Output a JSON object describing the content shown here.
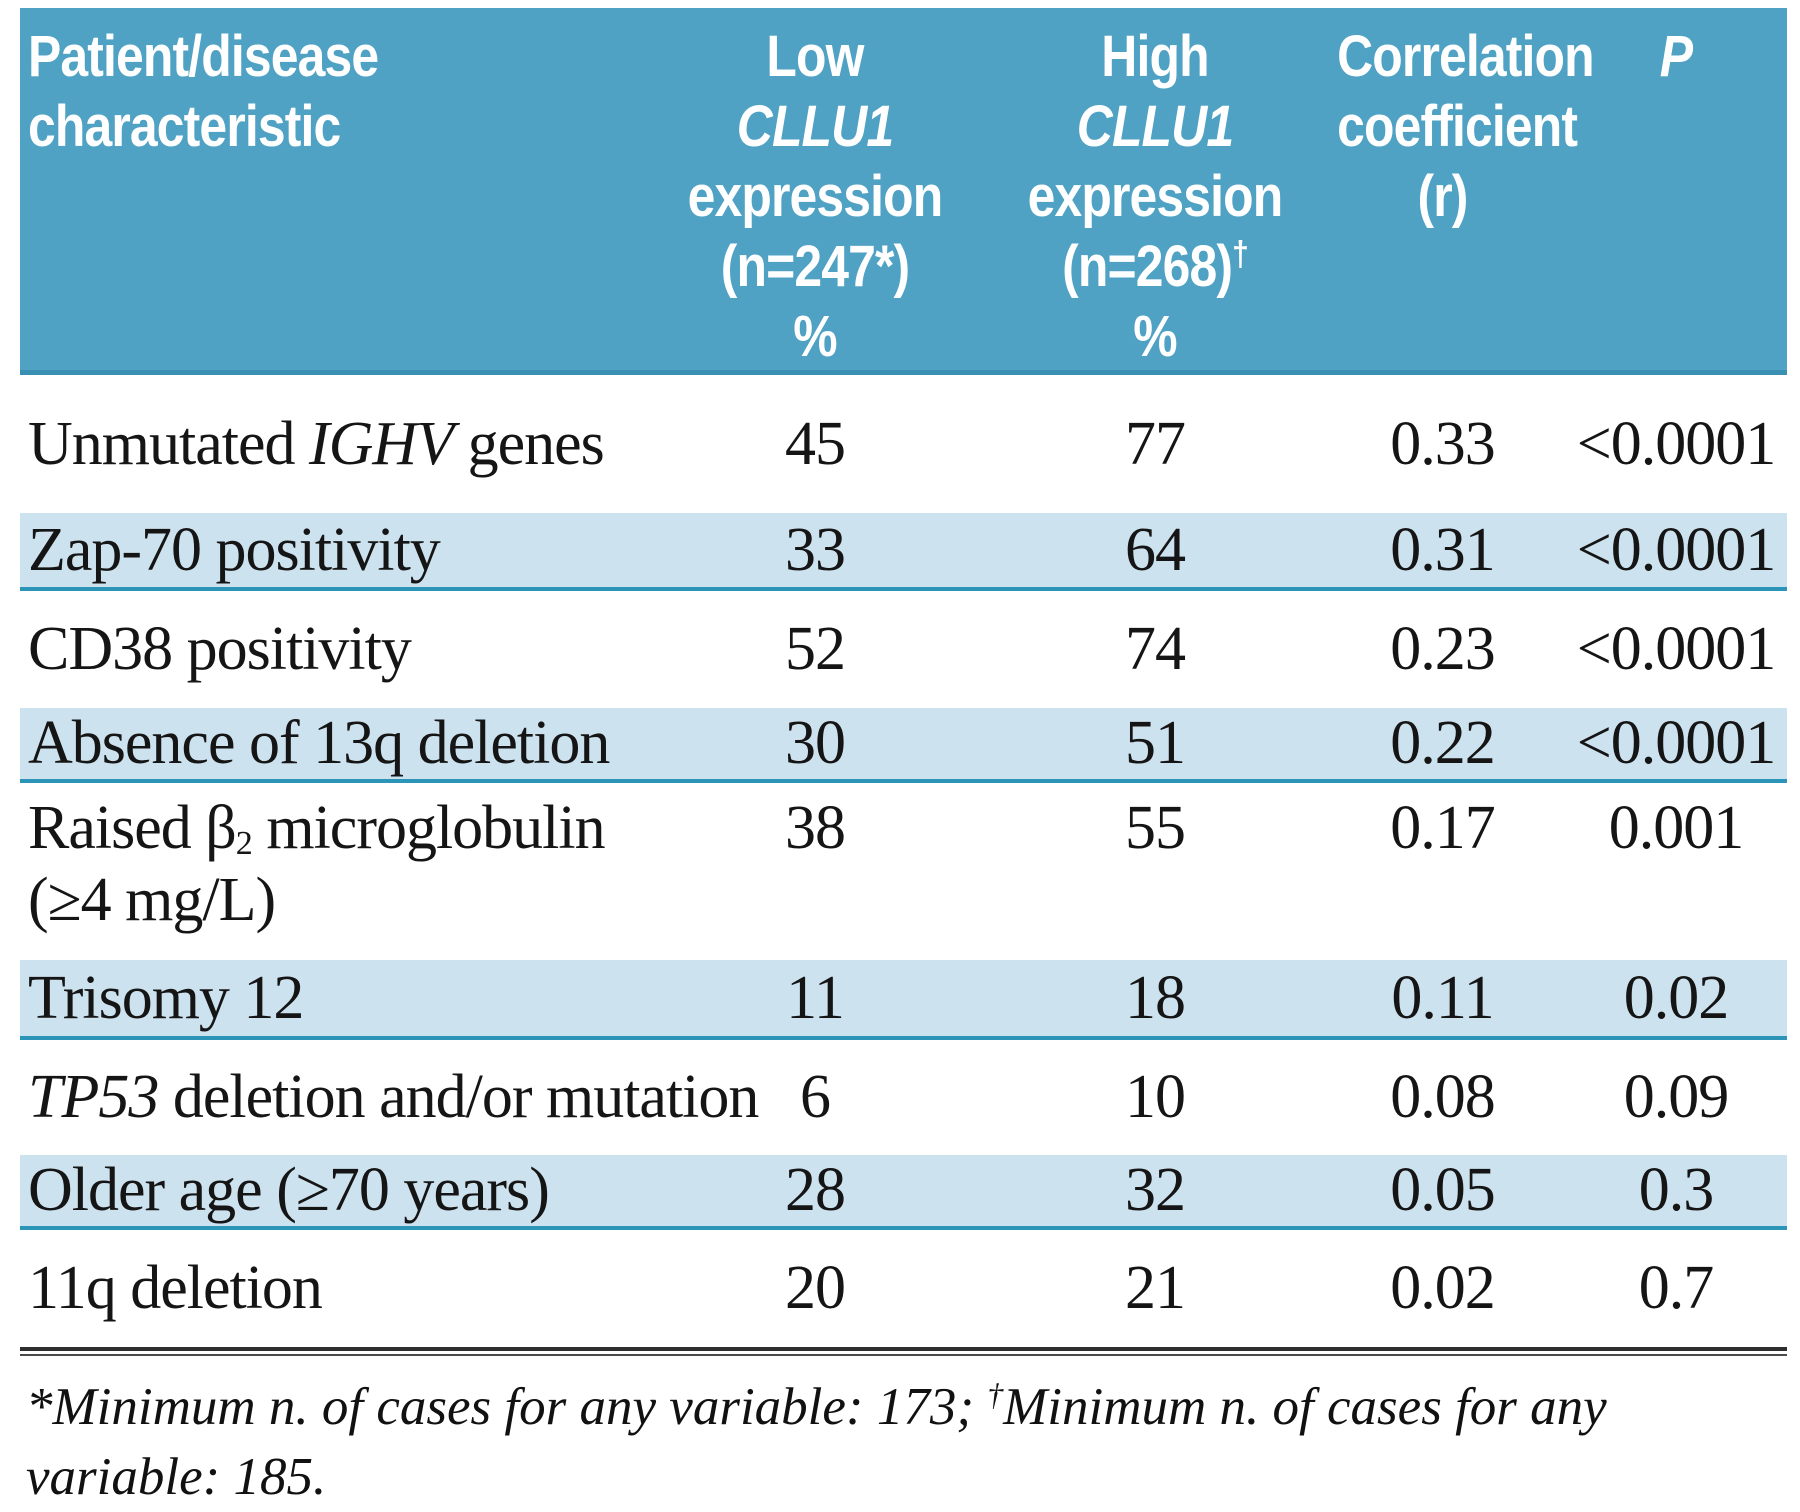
{
  "colors": {
    "header_bg": "#4fa2c4",
    "header_edge": "#3a90b2",
    "header_text": "#ffffff",
    "stripe_bg": "#cde2ef",
    "stripe_line": "#2c95b7",
    "body_text": "#151515"
  },
  "header": {
    "col1": {
      "line1": "Patient/disease",
      "line2": "characteristic"
    },
    "col2": {
      "qualifier": "Low",
      "gene": "CLLU1",
      "word": "expression",
      "n": "(n=247*)",
      "unit": "%"
    },
    "col3": {
      "qualifier": "High",
      "gene": "CLLU1",
      "word": "expression",
      "n": "(n=268)",
      "n_sup": "†",
      "unit": "%"
    },
    "col4": {
      "line1": "Correlation",
      "line2": "coefficient",
      "line3": "(r)"
    },
    "col5": {
      "label": "P"
    }
  },
  "rows": [
    {
      "label_pre": "Unmutated ",
      "label_italic": "IGHV",
      "label_post": " genes",
      "low": "45",
      "high": "77",
      "r": "0.33",
      "p": "<0.0001"
    },
    {
      "label": "Zap-70 positivity",
      "low": "33",
      "high": "64",
      "r": "0.31",
      "p": "<0.0001"
    },
    {
      "label": "CD38 positivity",
      "low": "52",
      "high": "74",
      "r": "0.23",
      "p": "<0.0001"
    },
    {
      "label": "Absence of 13q deletion",
      "low": "30",
      "high": "51",
      "r": "0.22",
      "p": "<0.0001"
    },
    {
      "label_pre": "Raised β",
      "label_sub": "2",
      "label_post": " microglobulin",
      "label_line2": "(≥4 mg/L)",
      "low": "38",
      "high": "55",
      "r": "0.17",
      "p": "0.001"
    },
    {
      "label": "Trisomy 12",
      "low": "11",
      "high": "18",
      "r": "0.11",
      "p": "0.02"
    },
    {
      "label_italic": "TP53",
      "label_post": " deletion and/or mutation",
      "low": "6",
      "high": "10",
      "r": "0.08",
      "p": "0.09"
    },
    {
      "label": "Older age (≥70 years)",
      "low": "28",
      "high": "32",
      "r": "0.05",
      "p": "0.3"
    },
    {
      "label": "11q deletion",
      "low": "20",
      "high": "21",
      "r": "0.02",
      "p": "0.7"
    }
  ],
  "footnote": {
    "part1": "*Minimum n. of cases for any variable: 173; ",
    "dagger": "†",
    "part2": "Minimum n. of cases for any variable: 185."
  },
  "chart_data": {
    "type": "table",
    "columns": [
      "Patient/disease characteristic",
      "Low CLLU1 expression (n=247*) %",
      "High CLLU1 expression (n=268)† %",
      "Correlation coefficient (r)",
      "P"
    ],
    "rows": [
      [
        "Unmutated IGHV genes",
        45,
        77,
        0.33,
        "<0.0001"
      ],
      [
        "Zap-70 positivity",
        33,
        64,
        0.31,
        "<0.0001"
      ],
      [
        "CD38 positivity",
        52,
        74,
        0.23,
        "<0.0001"
      ],
      [
        "Absence of 13q deletion",
        30,
        51,
        0.22,
        "<0.0001"
      ],
      [
        "Raised β2 microglobulin (≥4 mg/L)",
        38,
        55,
        0.17,
        "0.001"
      ],
      [
        "Trisomy 12",
        11,
        18,
        0.11,
        "0.02"
      ],
      [
        "TP53 deletion and/or mutation",
        6,
        10,
        0.08,
        "0.09"
      ],
      [
        "Older age (≥70 years)",
        28,
        32,
        0.05,
        "0.3"
      ],
      [
        "11q deletion",
        20,
        21,
        0.02,
        "0.7"
      ]
    ]
  }
}
